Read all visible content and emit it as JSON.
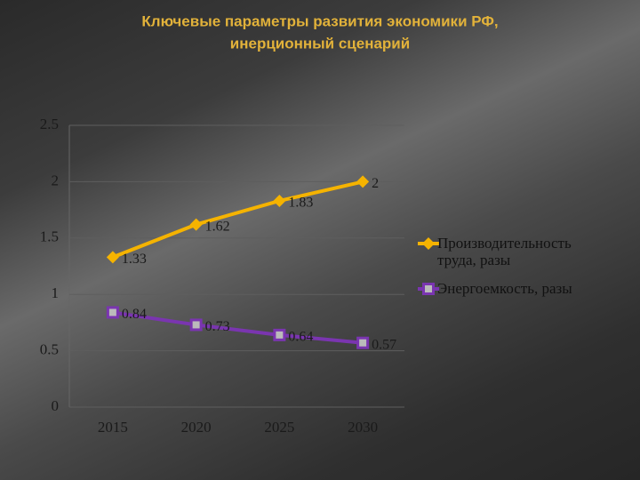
{
  "chart_data": {
    "type": "line",
    "title": [
      "Ключевые параметры развития экономики РФ,",
      "инерционный сценарий"
    ],
    "categories": [
      "2015",
      "2020",
      "2025",
      "2030"
    ],
    "series": [
      {
        "name": "Производительность труда, разы",
        "color": "#f5b300",
        "marker": "diamond",
        "values": [
          1.33,
          1.62,
          1.83,
          2
        ]
      },
      {
        "name": "Энергоемкость, разы",
        "color": "#7a35b0",
        "marker": "square",
        "values": [
          0.84,
          0.73,
          0.64,
          0.57
        ]
      }
    ],
    "ylim": [
      0,
      2.5
    ],
    "yticks": [
      0,
      0.5,
      1,
      1.5,
      2,
      2.5
    ],
    "grid": true,
    "legend": "right"
  }
}
